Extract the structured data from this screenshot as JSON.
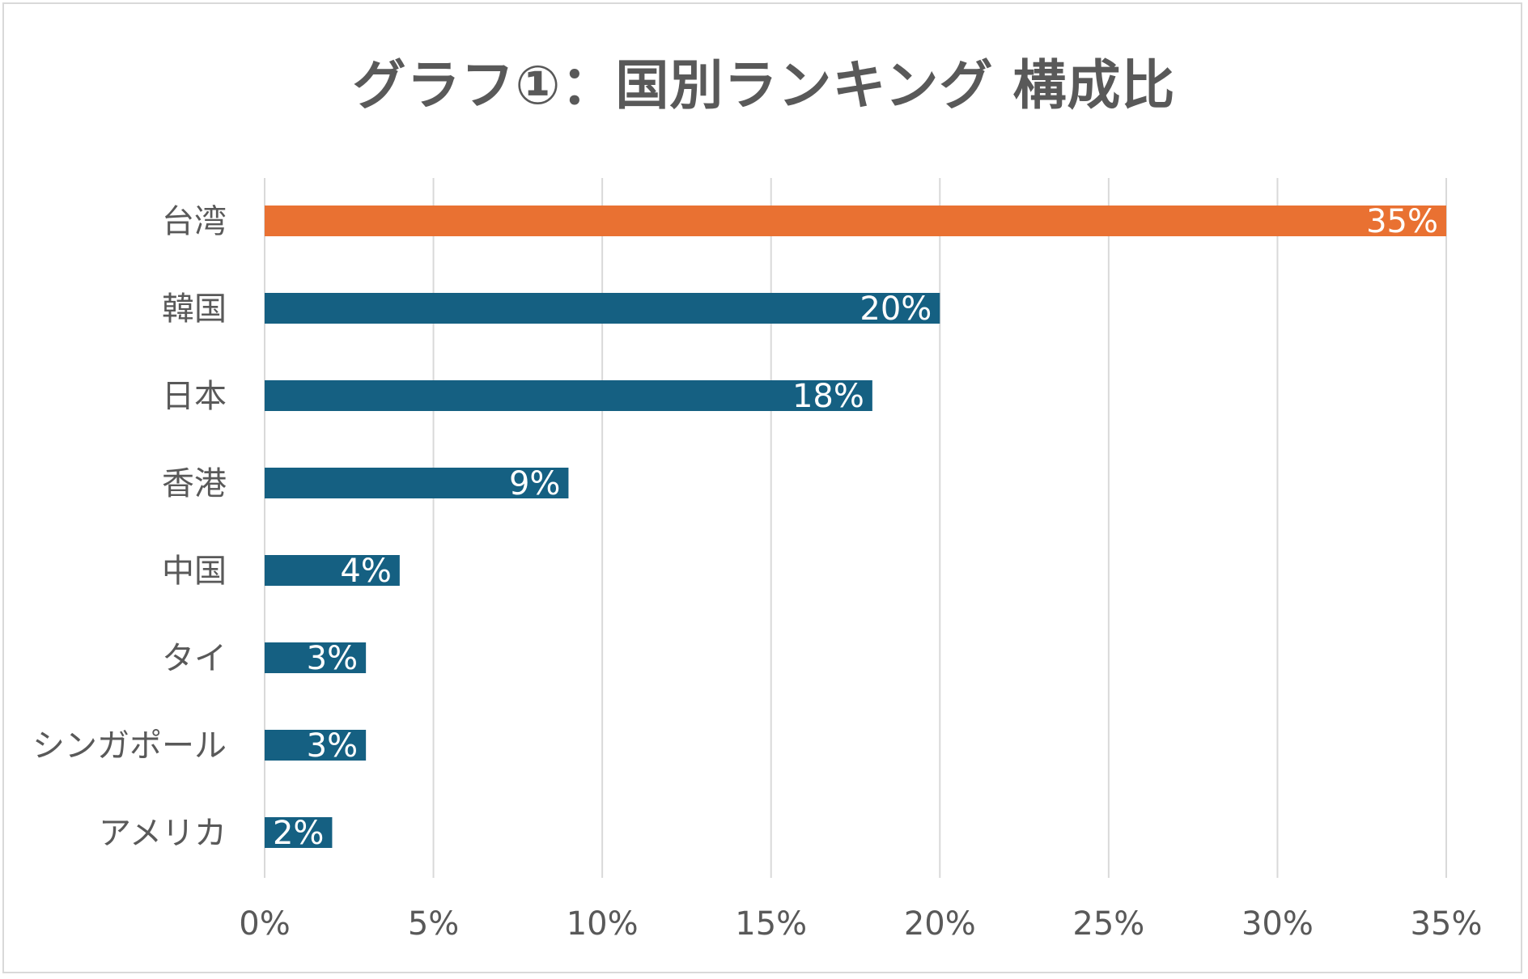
{
  "chart_data": {
    "type": "bar",
    "orientation": "horizontal",
    "title": "グラフ①：国別ランキング 構成比",
    "categories": [
      "台湾",
      "韓国",
      "日本",
      "香港",
      "中国",
      "タイ",
      "シンガポール",
      "アメリカ"
    ],
    "values": [
      35,
      20,
      18,
      9,
      4,
      3,
      3,
      2
    ],
    "data_labels": [
      "35%",
      "20%",
      "18%",
      "9%",
      "4%",
      "3%",
      "3%",
      "2%"
    ],
    "highlight_index": 0,
    "xlim": [
      0,
      35
    ],
    "x_ticks": [
      0,
      5,
      10,
      15,
      20,
      25,
      30,
      35
    ],
    "x_tick_labels": [
      "0%",
      "5%",
      "10%",
      "15%",
      "20%",
      "25%",
      "30%",
      "35%"
    ],
    "xlabel": "",
    "ylabel": "",
    "grid": true,
    "legend": "none",
    "colors": {
      "highlight": "#e97132",
      "bar": "#156082",
      "grid": "#d9d9d9",
      "text": "#595959"
    }
  }
}
